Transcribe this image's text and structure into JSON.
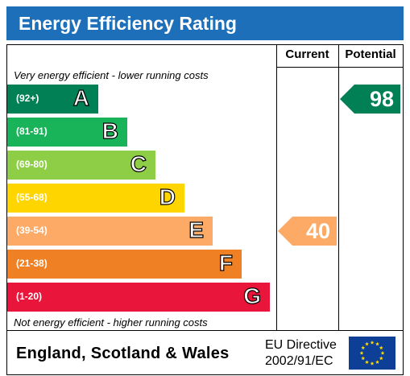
{
  "title": "Energy Efficiency Rating",
  "columns": {
    "current": "Current",
    "potential": "Potential"
  },
  "top_note": "Very energy efficient - lower running costs",
  "bottom_note": "Not energy efficient - higher running costs",
  "bands": [
    {
      "range": "(92+)",
      "letter": "A",
      "color": "#008054"
    },
    {
      "range": "(81-91)",
      "letter": "B",
      "color": "#19b459"
    },
    {
      "range": "(69-80)",
      "letter": "C",
      "color": "#8dce46"
    },
    {
      "range": "(55-68)",
      "letter": "D",
      "color": "#ffd500"
    },
    {
      "range": "(39-54)",
      "letter": "E",
      "color": "#fcaa65"
    },
    {
      "range": "(21-38)",
      "letter": "F",
      "color": "#ef8023"
    },
    {
      "range": "(1-20)",
      "letter": "G",
      "color": "#e9153b"
    }
  ],
  "current": {
    "value": "40",
    "band": "E",
    "color": "#fcaa65"
  },
  "potential": {
    "value": "98",
    "band": "A",
    "color": "#008054"
  },
  "footer": {
    "region": "England, Scotland & Wales",
    "directive_line1": "EU Directive",
    "directive_line2": "2002/91/EC"
  },
  "colors": {
    "header": "#1e6fba",
    "flag": "#0e3f97",
    "stars": "#ffdd00"
  }
}
